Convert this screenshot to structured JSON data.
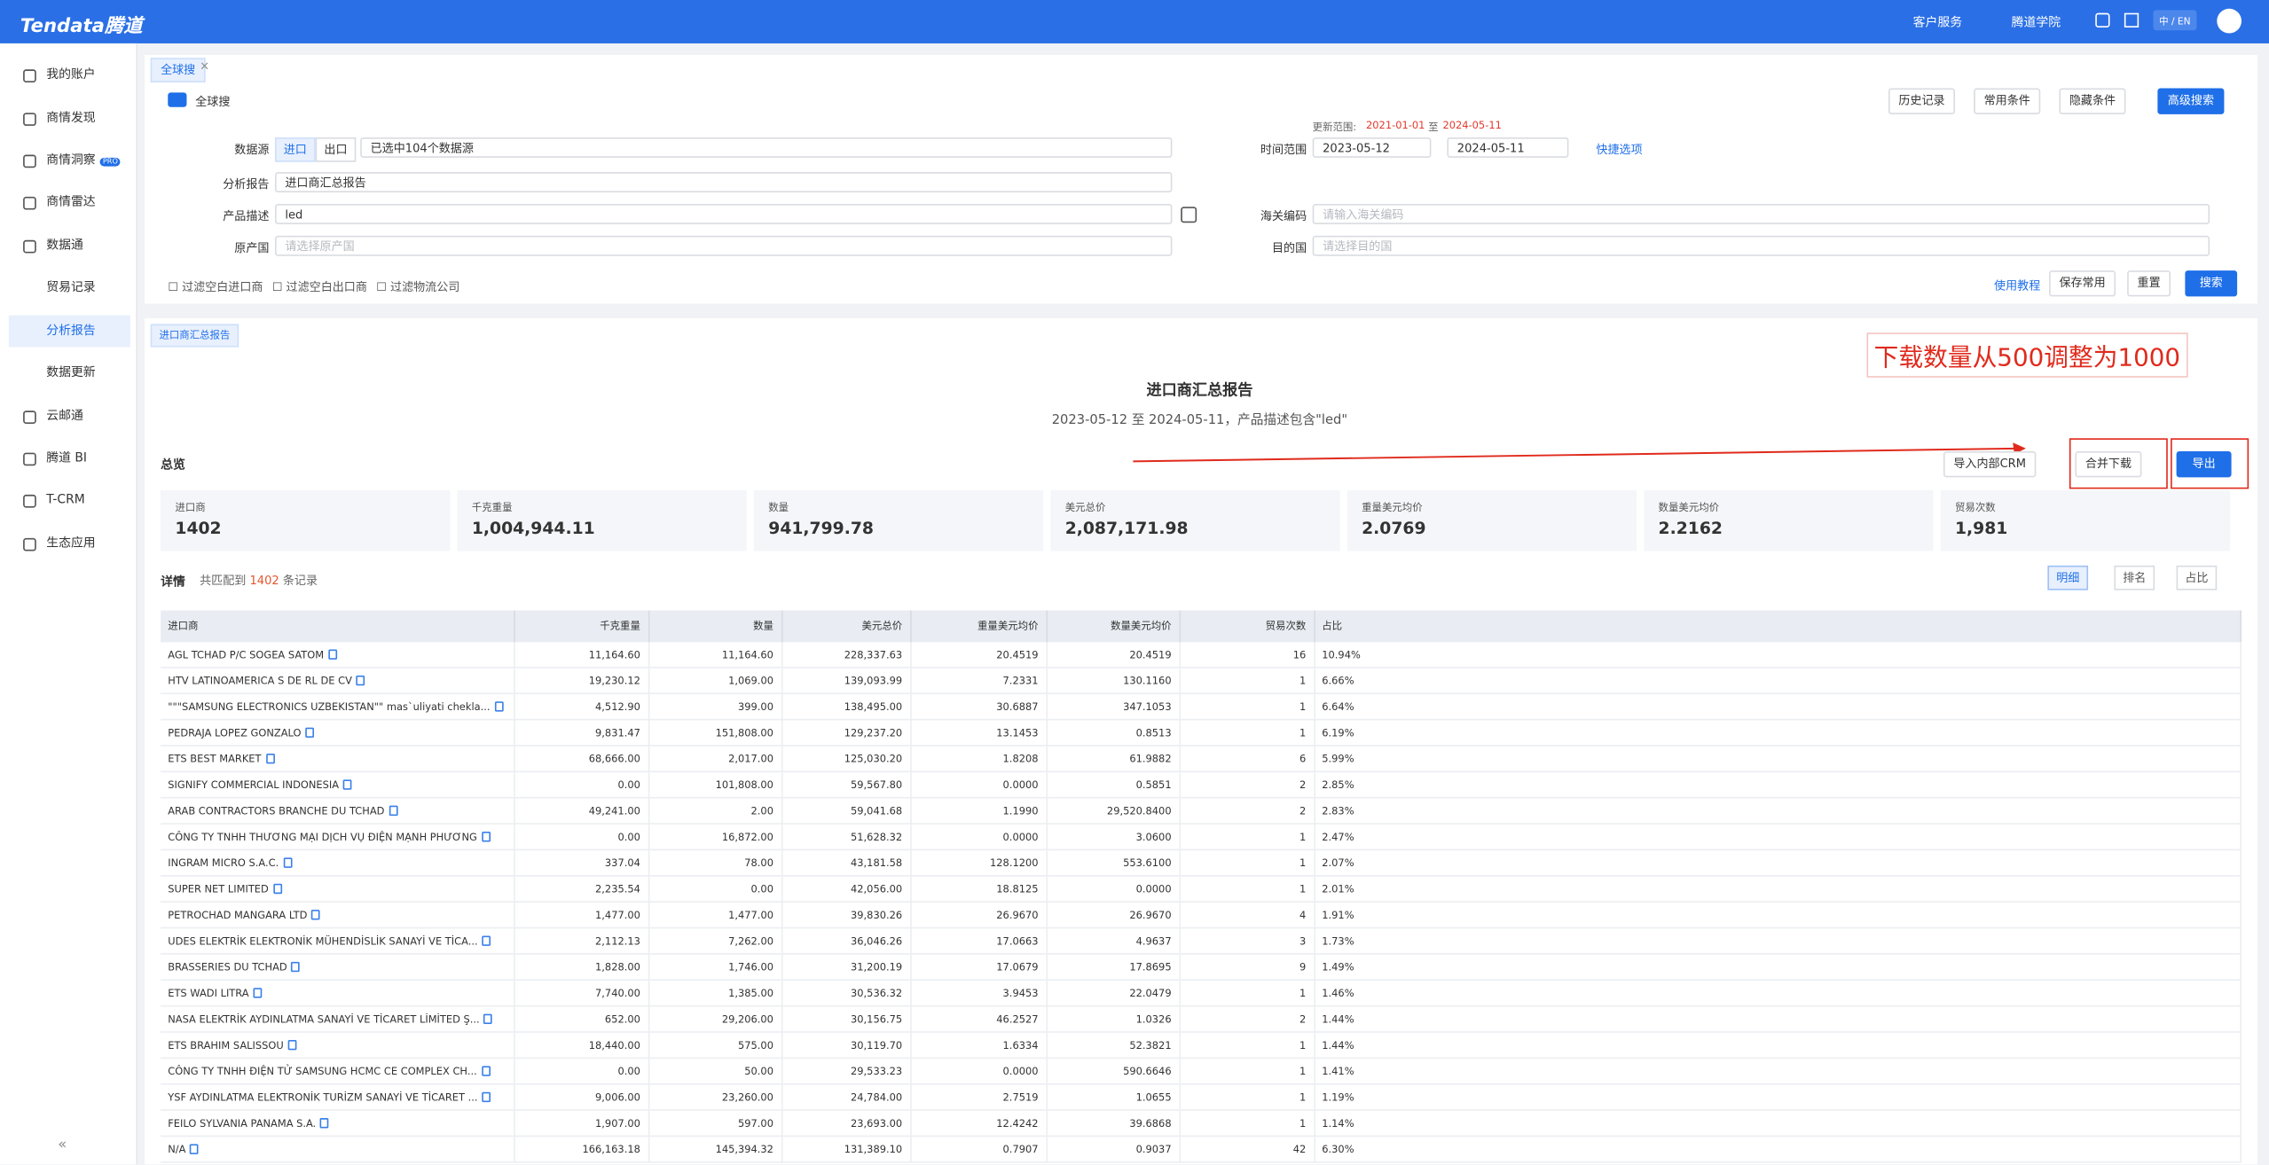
{
  "header": {
    "logo": "Tendata腾道",
    "nav": [
      "客户服务",
      "腾道学院"
    ],
    "lang": "中 / EN"
  },
  "sidebar": [
    "我的账户",
    "商情发现",
    "商情洞察",
    "商情雷达",
    "数据通",
    "贸易记录",
    "分析报告",
    "数据更新",
    "云邮通",
    "腾道 BI",
    "T-CRM",
    "生态应用"
  ],
  "sidebar_badge": "PRO",
  "search": {
    "tab": "全球搜",
    "scope": "全球搜",
    "toolbar": [
      "历史记录",
      "常用条件",
      "隐藏条件",
      "高级搜索"
    ],
    "update": {
      "label": "更新范围:",
      "from": "2021-01-01",
      "sep": "至",
      "to": "2024-05-11"
    },
    "form": {
      "source": {
        "label": "数据源",
        "options": [
          "进口",
          "出口"
        ],
        "value": "已选中104个数据源"
      },
      "time": {
        "label": "时间范围",
        "from": "2023-05-12",
        "to": "2024-05-11",
        "quick": "快捷选项"
      },
      "report": {
        "label": "分析报告",
        "value": "进口商汇总报告"
      },
      "product": {
        "label": "产品描述",
        "value": "led"
      },
      "hscode": {
        "label": "海关编码",
        "placeholder": "请输入海关编码"
      },
      "origin": {
        "label": "原产国",
        "placeholder": "请选择原产国"
      },
      "dest": {
        "label": "目的国",
        "placeholder": "请选择目的国"
      }
    },
    "filters": [
      "过滤空白进口商",
      "过滤空白出口商",
      "过滤物流公司"
    ],
    "actions": [
      "使用教程",
      "保存常用",
      "重置",
      "搜索"
    ]
  },
  "report": {
    "tab": "进口商汇总报告",
    "annotation": "下载数量从500调整为1000",
    "title": "进口商汇总报告",
    "subtitle": "2023-05-12 至 2024-05-11，产品描述包含\"led\"",
    "overview": {
      "title": "总览",
      "buttons": [
        "导入内部CRM",
        "合并下载",
        "导出"
      ],
      "stats": [
        {
          "label": "进口商",
          "value": "1402"
        },
        {
          "label": "千克重量",
          "value": "1,004,944.11"
        },
        {
          "label": "数量",
          "value": "941,799.78"
        },
        {
          "label": "美元总价",
          "value": "2,087,171.98"
        },
        {
          "label": "重量美元均价",
          "value": "2.0769"
        },
        {
          "label": "数量美元均价",
          "value": "2.2162"
        },
        {
          "label": "贸易次数",
          "value": "1,981"
        }
      ]
    },
    "details": {
      "title": "详情",
      "prefix": "共匹配到",
      "count": "1402",
      "suffix": "条记录",
      "views": [
        "明细",
        "排名",
        "占比"
      ]
    }
  },
  "table": {
    "columns": [
      "进口商",
      "千克重量",
      "数量",
      "美元总价",
      "重量美元均价",
      "数量美元均价",
      "贸易次数",
      "占比"
    ],
    "rows": [
      [
        "AGL TCHAD P/C SOGEA SATOM",
        "11,164.60",
        "11,164.60",
        "228,337.63",
        "20.4519",
        "20.4519",
        "16",
        "10.94%"
      ],
      [
        "HTV LATINOAMERICA S DE RL DE CV",
        "19,230.12",
        "1,069.00",
        "139,093.99",
        "7.2331",
        "130.1160",
        "1",
        "6.66%"
      ],
      [
        "\"\"\"SAMSUNG ELECTRONICS UZBEKISTAN\"\" mas`uliyati chekla...",
        "4,512.90",
        "399.00",
        "138,495.00",
        "30.6887",
        "347.1053",
        "1",
        "6.64%"
      ],
      [
        "PEDRAJA LOPEZ GONZALO",
        "9,831.47",
        "151,808.00",
        "129,237.20",
        "13.1453",
        "0.8513",
        "1",
        "6.19%"
      ],
      [
        "ETS BEST MARKET",
        "68,666.00",
        "2,017.00",
        "125,030.20",
        "1.8208",
        "61.9882",
        "6",
        "5.99%"
      ],
      [
        "SIGNIFY COMMERCIAL INDONESIA",
        "0.00",
        "101,808.00",
        "59,567.80",
        "0.0000",
        "0.5851",
        "2",
        "2.85%"
      ],
      [
        "ARAB CONTRACTORS BRANCHE DU TCHAD",
        "49,241.00",
        "2.00",
        "59,041.68",
        "1.1990",
        "29,520.8400",
        "2",
        "2.83%"
      ],
      [
        "CÔNG TY TNHH THƯƠNG MẠI DỊCH VỤ ĐIỆN MẠNH PHƯƠNG",
        "0.00",
        "16,872.00",
        "51,628.32",
        "0.0000",
        "3.0600",
        "1",
        "2.47%"
      ],
      [
        "INGRAM MICRO S.A.C.",
        "337.04",
        "78.00",
        "43,181.58",
        "128.1200",
        "553.6100",
        "1",
        "2.07%"
      ],
      [
        "SUPER NET LIMITED",
        "2,235.54",
        "0.00",
        "42,056.00",
        "18.8125",
        "0.0000",
        "1",
        "2.01%"
      ],
      [
        "PETROCHAD MANGARA LTD",
        "1,477.00",
        "1,477.00",
        "39,830.26",
        "26.9670",
        "26.9670",
        "4",
        "1.91%"
      ],
      [
        "UDES ELEKTRİK ELEKTRONİK MÜHENDİSLİK SANAYİ VE TİCA...",
        "2,112.13",
        "7,262.00",
        "36,046.26",
        "17.0663",
        "4.9637",
        "3",
        "1.73%"
      ],
      [
        "BRASSERIES DU TCHAD",
        "1,828.00",
        "1,746.00",
        "31,200.19",
        "17.0679",
        "17.8695",
        "9",
        "1.49%"
      ],
      [
        "ETS WADI LITRA",
        "7,740.00",
        "1,385.00",
        "30,536.32",
        "3.9453",
        "22.0479",
        "1",
        "1.46%"
      ],
      [
        "NASA ELEKTRİK AYDINLATMA SANAYİ VE TİCARET LİMİTED Ş...",
        "652.00",
        "29,206.00",
        "30,156.75",
        "46.2527",
        "1.0326",
        "2",
        "1.44%"
      ],
      [
        "ETS BRAHIM SALISSOU",
        "18,440.00",
        "575.00",
        "30,119.70",
        "1.6334",
        "52.3821",
        "1",
        "1.44%"
      ],
      [
        "CÔNG TY TNHH ĐIỆN TỬ SAMSUNG HCMC CE COMPLEX CH...",
        "0.00",
        "50.00",
        "29,533.23",
        "0.0000",
        "590.6646",
        "1",
        "1.41%"
      ],
      [
        "YSF AYDINLATMA ELEKTRONİK TURİZM SANAYİ VE TİCARET ...",
        "9,006.00",
        "23,260.00",
        "24,784.00",
        "2.7519",
        "1.0655",
        "1",
        "1.19%"
      ],
      [
        "FEILO SYLVANIA PANAMA S.A.",
        "1,907.00",
        "597.00",
        "23,693.00",
        "12.4242",
        "39.6868",
        "1",
        "1.14%"
      ],
      [
        "N/A",
        "166,163.18",
        "145,394.32",
        "131,389.10",
        "0.7907",
        "0.9037",
        "42",
        "6.30%"
      ]
    ]
  }
}
